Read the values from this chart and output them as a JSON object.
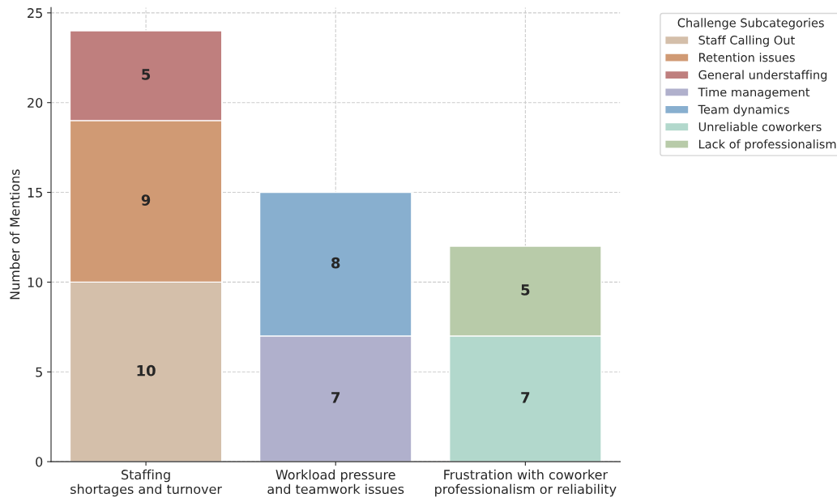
{
  "chart_data": {
    "type": "bar",
    "stacked": true,
    "ylabel": "Number of Mentions",
    "legend_title": "Challenge Subcategories",
    "categories": [
      "Staffing\nshortages and turnover",
      "Workload pressure\nand teamwork issues",
      "Frustration with coworker\nprofessionalism or reliability"
    ],
    "series": [
      {
        "name": "Staff Calling Out",
        "color": "#d4bfaa",
        "values": [
          10,
          null,
          null
        ]
      },
      {
        "name": "Retention issues",
        "color": "#d09a74",
        "values": [
          9,
          null,
          null
        ]
      },
      {
        "name": "General understaffing",
        "color": "#bf7f7e",
        "values": [
          5,
          null,
          null
        ]
      },
      {
        "name": "Time management",
        "color": "#b0b0cc",
        "values": [
          null,
          7,
          null
        ]
      },
      {
        "name": "Team dynamics",
        "color": "#88afcf",
        "values": [
          null,
          8,
          null
        ]
      },
      {
        "name": "Unreliable coworkers",
        "color": "#b2d8cc",
        "values": [
          null,
          null,
          7
        ]
      },
      {
        "name": "Lack of professionalism",
        "color": "#b8cba9",
        "values": [
          null,
          null,
          5
        ]
      }
    ],
    "ylim": [
      0,
      25.3
    ],
    "yticks": [
      0,
      5,
      10,
      15,
      20,
      25
    ],
    "grid": true,
    "legend": "top right",
    "data_labels": true
  }
}
